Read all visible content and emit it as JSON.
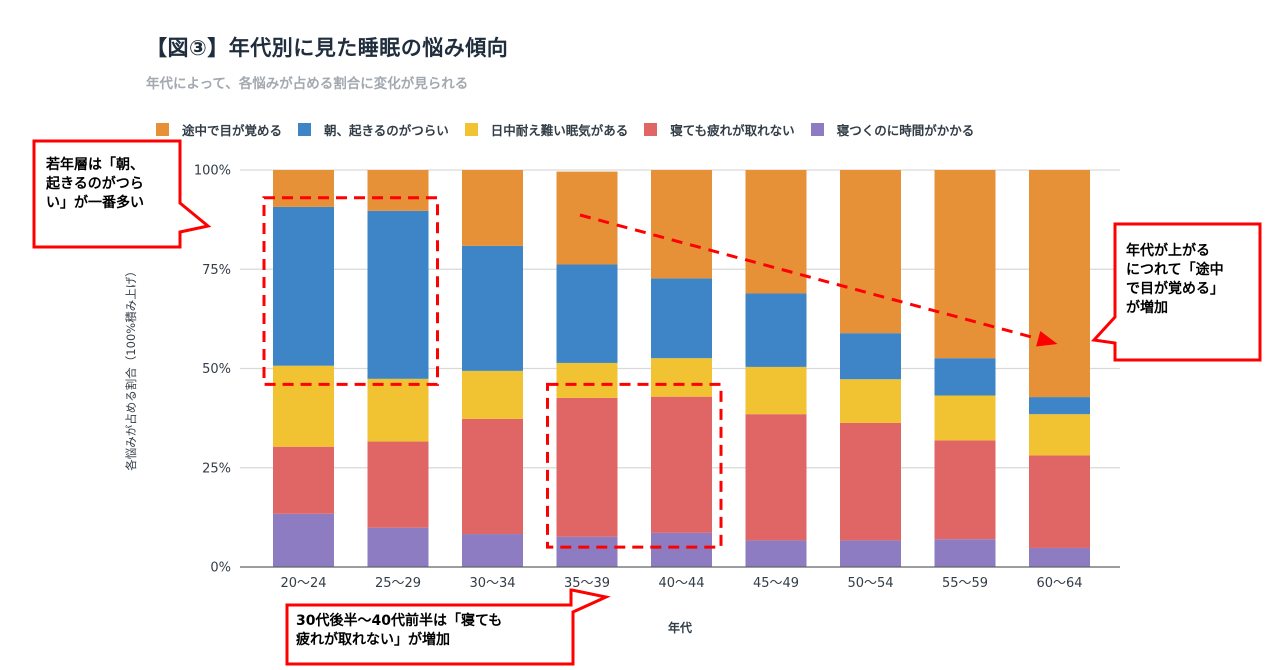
{
  "chart_data": {
    "type": "bar",
    "stacked": true,
    "normalized_percent": true,
    "title": "【図③】年代別に見た睡眠の悩み傾向",
    "subtitle": "年代によって、各悩みが占める割合に変化が見られる",
    "xlabel": "年代",
    "ylabel": "各悩みが占める割合（100%積み上げ）",
    "ylim": [
      0,
      100
    ],
    "yticks": [
      {
        "value": 0,
        "label": "0%"
      },
      {
        "value": 25,
        "label": "25%"
      },
      {
        "value": 50,
        "label": "50%"
      },
      {
        "value": 75,
        "label": "75%"
      },
      {
        "value": 100,
        "label": "100%"
      }
    ],
    "grid": true,
    "legend_position": "top-left",
    "categories": [
      "20〜24",
      "25〜29",
      "30〜34",
      "35〜39",
      "40〜44",
      "45〜49",
      "50〜54",
      "55〜59",
      "60〜64"
    ],
    "series": [
      {
        "name": "寝つくのに時間がかかる",
        "color": "#8e7cc3",
        "values": [
          13.4,
          9.9,
          8.3,
          7.6,
          8.6,
          6.7,
          6.7,
          7.0,
          4.8
        ]
      },
      {
        "name": "寝ても疲れが取れない",
        "color": "#e06666",
        "values": [
          16.9,
          21.7,
          29.0,
          35.0,
          34.3,
          31.8,
          29.6,
          24.9,
          23.3
        ]
      },
      {
        "name": "日中耐え難い眠気がある",
        "color": "#f1c232",
        "values": [
          20.4,
          15.8,
          12.1,
          8.8,
          9.7,
          11.9,
          11.0,
          11.3,
          10.4
        ]
      },
      {
        "name": "朝、起きるのがつらい",
        "color": "#3d85c6",
        "values": [
          40.0,
          42.3,
          31.5,
          24.8,
          20.1,
          18.5,
          11.6,
          9.4,
          4.3
        ]
      },
      {
        "name": "途中で目が覚める",
        "color": "#e69138",
        "values": [
          9.3,
          10.3,
          19.1,
          23.4,
          27.3,
          31.1,
          41.1,
          47.4,
          57.2
        ]
      }
    ],
    "legend_order": [
      "途中で目が覚める",
      "朝、起きるのがつらい",
      "日中耐え難い眠気がある",
      "寝ても疲れが取れない",
      "寝つくのに時間がかかる"
    ],
    "annotations": [
      {
        "id": "young",
        "text": "若年層は「朝、起きるのがつらい」が一番多い",
        "lines": [
          "若年層は「朝、",
          "起きるのがつら",
          "い」が一番多い"
        ],
        "highlights_categories": [
          "20〜24",
          "25〜29"
        ],
        "highlight_range": [
          46,
          93
        ]
      },
      {
        "id": "mid",
        "text": "30代後半〜40代前半は「寝ても疲れが取れない」が増加",
        "lines": [
          "30代後半〜40代前半は「寝ても",
          "疲れが取れない」が増加"
        ],
        "highlights_categories": [
          "35〜39",
          "40〜44"
        ],
        "highlight_range": [
          5,
          46
        ]
      },
      {
        "id": "trend",
        "text": "年代が上がるにつれて「途中で目が覚める」が増加",
        "lines": [
          "年代が上がる",
          "につれて「途中",
          "で目が覚める」",
          "が増加"
        ],
        "arrow_from_category": "35〜39",
        "arrow_to_category": "60〜64"
      }
    ],
    "annotation_color": "#ff0000"
  }
}
